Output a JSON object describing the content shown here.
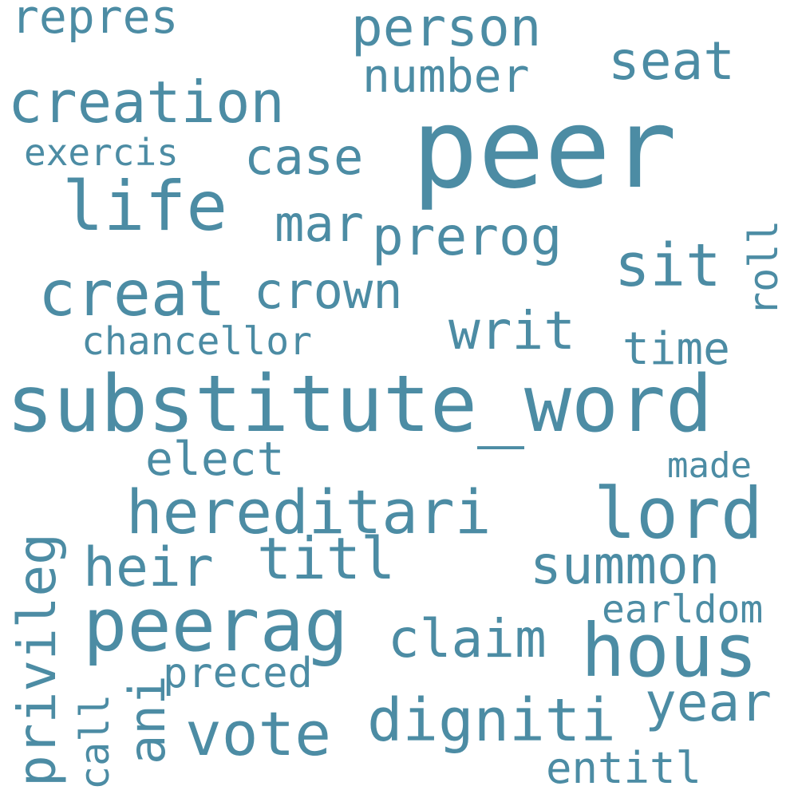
{
  "color": "#4c8ca4",
  "background": "#ffffff",
  "words": {
    "peer": "peer",
    "substitute_word": "substitute_word",
    "hous": "hous",
    "lord": "lord",
    "peerag": "peerag",
    "hereditari": "hereditari",
    "creat": "creat",
    "life": "life",
    "creation": "creation",
    "person": "person",
    "seat": "seat",
    "number": "number",
    "repres": "repres",
    "case": "case",
    "exercis": "exercis",
    "mar": "mar",
    "prerog": "prerog",
    "sit": "sit",
    "roll": "roll",
    "crown": "crown",
    "writ": "writ",
    "chancellor": "chancellor",
    "time": "time",
    "elect": "elect",
    "made": "made",
    "privileg": "privileg",
    "heir": "heir",
    "titl": "titl",
    "summon": "summon",
    "earldom": "earldom",
    "claim": "claim",
    "preced": "preced",
    "ani": "ani",
    "call": "call",
    "vote": "vote",
    "digniti": "digniti",
    "year": "year",
    "entitl": "entitl"
  }
}
